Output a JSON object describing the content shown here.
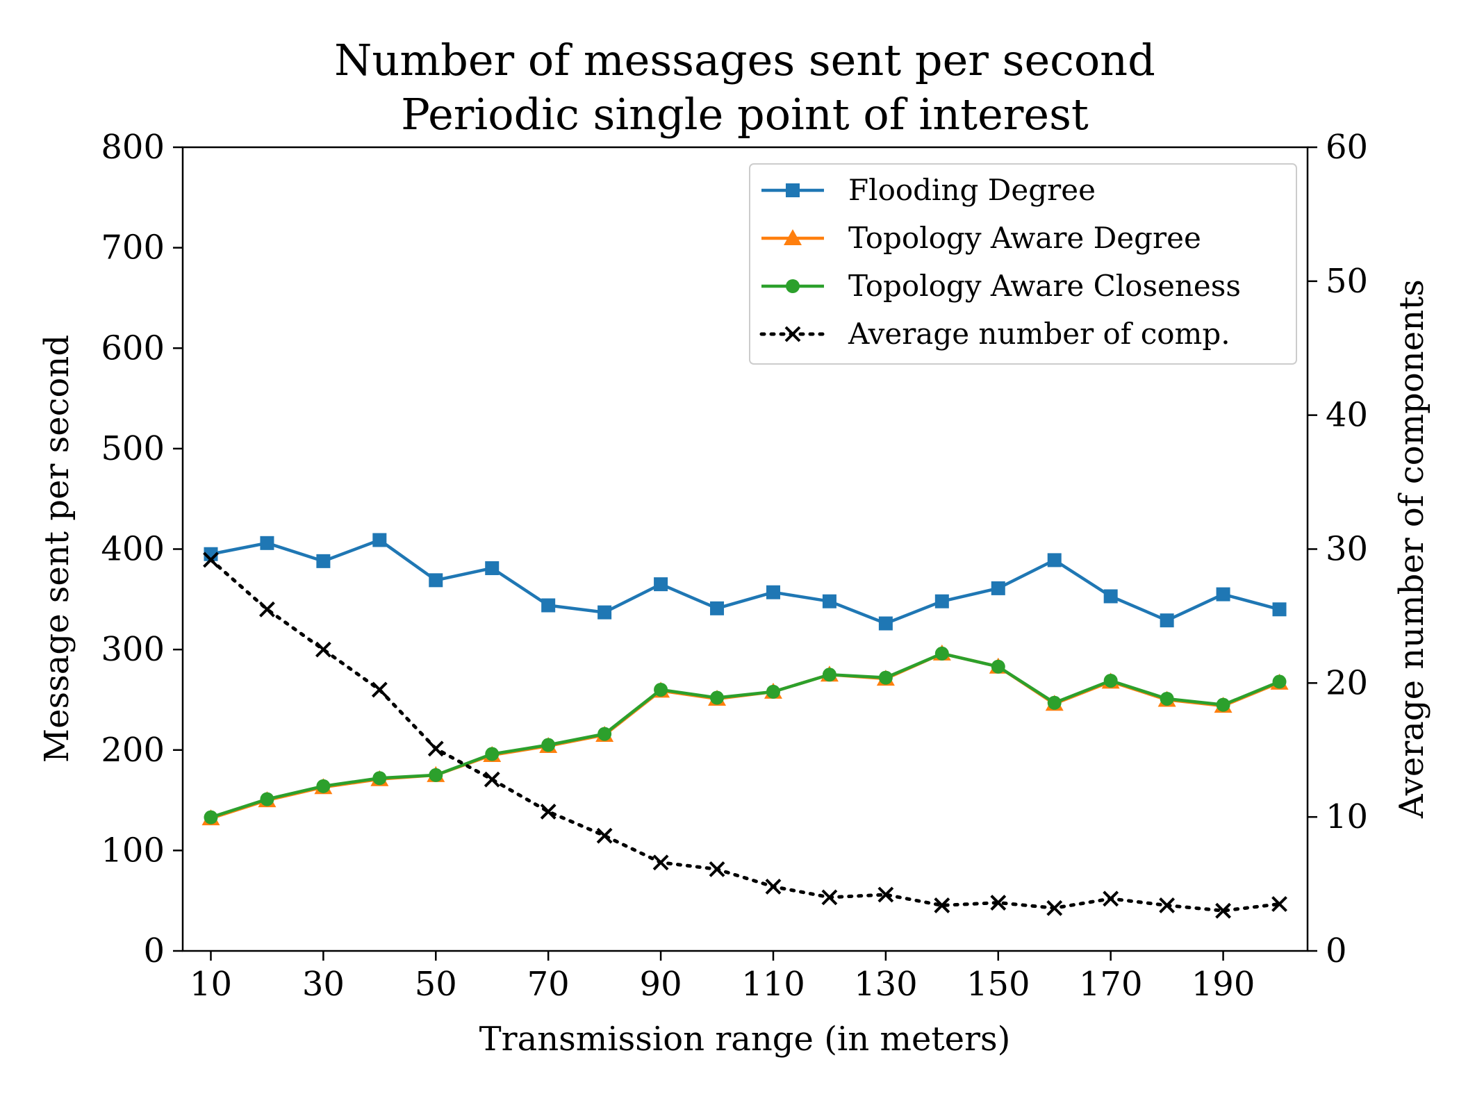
{
  "chart_data": {
    "type": "line",
    "title": "Number of messages sent per second",
    "subtitle": "Periodic single point of interest",
    "xlabel": "Transmission range (in meters)",
    "ylabel": "Message sent per second",
    "y2label": "Average number of components",
    "xlim": [
      5,
      205
    ],
    "ylim": [
      0,
      800
    ],
    "y2lim": [
      0,
      60
    ],
    "x_ticks": [
      10,
      30,
      50,
      70,
      90,
      110,
      130,
      150,
      170,
      190
    ],
    "y_ticks": [
      0,
      100,
      200,
      300,
      400,
      500,
      600,
      700,
      800
    ],
    "y2_ticks": [
      0,
      10,
      20,
      30,
      40,
      50,
      60
    ],
    "grid": false,
    "legend_position": "top-right",
    "x": [
      10,
      20,
      30,
      40,
      50,
      60,
      70,
      80,
      90,
      100,
      110,
      120,
      130,
      140,
      150,
      160,
      170,
      180,
      190,
      200
    ],
    "series": [
      {
        "name": "Flooding Degree",
        "axis": "left",
        "color": "#1f77b4",
        "marker": "square",
        "linestyle": "solid",
        "values": [
          395,
          406,
          388,
          409,
          369,
          381,
          344,
          337,
          365,
          341,
          357,
          348,
          326,
          348,
          361,
          389,
          353,
          329,
          355,
          340
        ]
      },
      {
        "name": "Topology Aware Degree",
        "axis": "left",
        "color": "#ff7f0e",
        "marker": "triangle",
        "linestyle": "solid",
        "values": [
          132,
          150,
          163,
          171,
          175,
          195,
          204,
          215,
          259,
          251,
          258,
          275,
          271,
          296,
          283,
          246,
          268,
          250,
          244,
          267
        ]
      },
      {
        "name": "Topology Aware Closeness",
        "axis": "left",
        "color": "#2ca02c",
        "marker": "circle",
        "linestyle": "solid",
        "values": [
          133,
          151,
          164,
          172,
          175,
          196,
          205,
          216,
          260,
          252,
          258,
          275,
          272,
          296,
          283,
          247,
          269,
          251,
          245,
          268
        ]
      },
      {
        "name": "Average number of comp.",
        "axis": "right",
        "color": "#000000",
        "marker": "x",
        "linestyle": "dotted",
        "values": [
          29.2,
          25.5,
          22.5,
          19.5,
          15.1,
          12.8,
          10.4,
          8.6,
          6.6,
          6.1,
          4.8,
          4.0,
          4.2,
          3.4,
          3.6,
          3.2,
          3.9,
          3.4,
          3.0,
          3.5
        ]
      }
    ]
  }
}
